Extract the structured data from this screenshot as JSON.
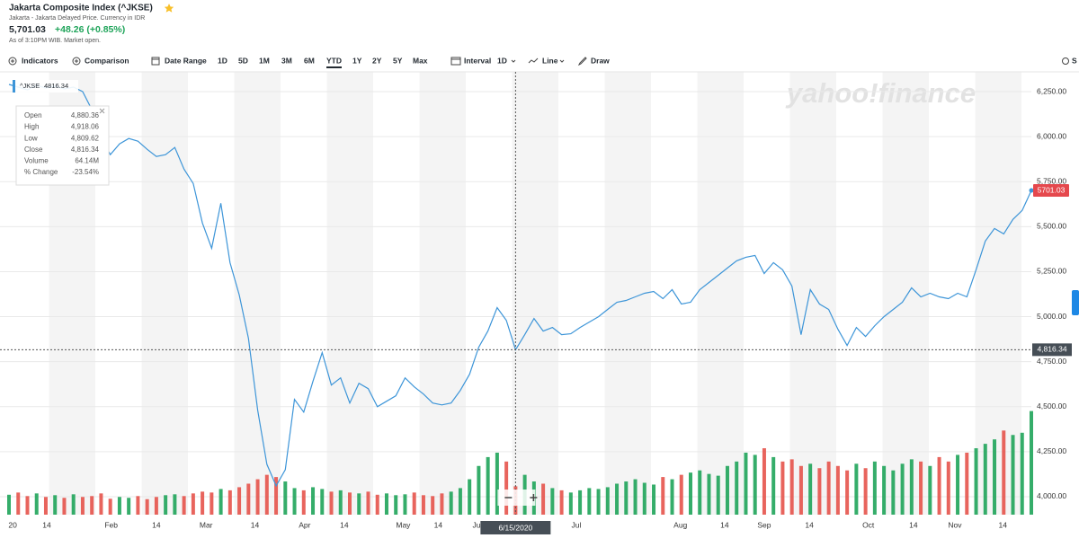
{
  "header": {
    "title": "Jakarta Composite Index (^JKSE)",
    "subtitle": "Jakarta - Jakarta Delayed Price. Currency in IDR",
    "price": "5,701.03",
    "change": "+48.26 (+0.85%)",
    "note": "As of 3:10PM WIB. Market open."
  },
  "toolbar": {
    "left": [
      "Indicators",
      "Comparison",
      "Date Range"
    ],
    "ranges": [
      "1D",
      "5D",
      "1M",
      "3M",
      "6M",
      "YTD",
      "1Y",
      "2Y",
      "5Y",
      "Max"
    ],
    "selected_range": 5,
    "interval": "Interval",
    "interval_value": "1D",
    "line": "Line",
    "draw": "Draw",
    "settings": "S"
  },
  "tooltip": {
    "rows": [
      [
        "Open",
        "4,880.36"
      ],
      [
        "High",
        "4,918.06"
      ],
      [
        "Low",
        "4,809.62"
      ],
      [
        "Close",
        "4,816.34"
      ],
      [
        "Volume",
        "64.14M"
      ],
      [
        "% Change",
        "-23.54%"
      ]
    ]
  },
  "chart_data": {
    "type": "line",
    "watermark": "yahoo!finance",
    "series": [
      {
        "name": "^JKSE",
        "color": "#3d95d8",
        "values": [
          6290,
          6275,
          6260,
          6285,
          6270,
          6280,
          6265,
          6275,
          6250,
          6150,
          6000,
          5900,
          5960,
          5990,
          5975,
          5930,
          5890,
          5900,
          5940,
          5820,
          5740,
          5520,
          5380,
          5630,
          5300,
          5120,
          4880,
          4480,
          4180,
          4060,
          4150,
          4540,
          4470,
          4640,
          4800,
          4620,
          4660,
          4520,
          4630,
          4600,
          4500,
          4530,
          4560,
          4660,
          4610,
          4570,
          4520,
          4510,
          4520,
          4590,
          4680,
          4830,
          4920,
          5050,
          4980,
          4816.34,
          4900,
          4990,
          4920,
          4940,
          4900,
          4905,
          4940,
          4970,
          5000,
          5040,
          5080,
          5090,
          5110,
          5130,
          5140,
          5100,
          5150,
          5070,
          5080,
          5150,
          5190,
          5230,
          5270,
          5310,
          5330,
          5340,
          5240,
          5300,
          5260,
          5170,
          4900,
          5150,
          5070,
          5040,
          4930,
          4840,
          4940,
          4890,
          4950,
          5000,
          5040,
          5080,
          5160,
          5110,
          5130,
          5110,
          5100,
          5130,
          5110,
          5260,
          5420,
          5490,
          5460,
          5540,
          5590,
          5701.03
        ]
      }
    ],
    "volume": {
      "up_color": "#1fa45a",
      "down_color": "#e5534b",
      "ylim": [
        0,
        1000
      ],
      "values": [
        45,
        50,
        42,
        48,
        40,
        44,
        38,
        46,
        40,
        42,
        48,
        36,
        40,
        38,
        42,
        35,
        40,
        44,
        46,
        42,
        48,
        52,
        50,
        58,
        55,
        62,
        70,
        80,
        90,
        85,
        75,
        60,
        55,
        62,
        58,
        52,
        55,
        50,
        48,
        52,
        45,
        48,
        44,
        46,
        50,
        44,
        42,
        48,
        52,
        60,
        80,
        110,
        130,
        140,
        120,
        64.14,
        90,
        75,
        70,
        60,
        55,
        50,
        55,
        60,
        58,
        62,
        70,
        75,
        80,
        72,
        68,
        85,
        80,
        90,
        95,
        100,
        92,
        88,
        110,
        120,
        140,
        135,
        150,
        130,
        120,
        125,
        110,
        115,
        105,
        120,
        110,
        100,
        115,
        105,
        120,
        110,
        100,
        115,
        125,
        120,
        110,
        130,
        120,
        135,
        140,
        150,
        160,
        170,
        190,
        180,
        185,
        234
      ]
    },
    "xlim": [
      0,
      111
    ],
    "xticks": [
      {
        "value": 0.4,
        "label": "20"
      },
      {
        "value": 4.1,
        "label": "14"
      },
      {
        "value": 11.1,
        "label": "Feb"
      },
      {
        "value": 16,
        "label": "14"
      },
      {
        "value": 21.4,
        "label": "Mar"
      },
      {
        "value": 26.7,
        "label": "14"
      },
      {
        "value": 32.1,
        "label": "Apr"
      },
      {
        "value": 36.4,
        "label": "14"
      },
      {
        "value": 42.8,
        "label": "May"
      },
      {
        "value": 46.6,
        "label": "14"
      },
      {
        "value": 51,
        "label": "Jun"
      },
      {
        "value": 61.6,
        "label": "Jul"
      },
      {
        "value": 72.9,
        "label": "Aug"
      },
      {
        "value": 77.7,
        "label": "14"
      },
      {
        "value": 82,
        "label": "Sep"
      },
      {
        "value": 86.9,
        "label": "14"
      },
      {
        "value": 93.3,
        "label": "Oct"
      },
      {
        "value": 98.2,
        "label": "14"
      },
      {
        "value": 102.7,
        "label": "Nov"
      },
      {
        "value": 107.9,
        "label": "14"
      }
    ],
    "ylim": [
      3900,
      6360
    ],
    "yticks": [
      {
        "value": 4000,
        "label": "4,000.00"
      },
      {
        "value": 4250,
        "label": "4,250.00"
      },
      {
        "value": 4500,
        "label": "4,500.00"
      },
      {
        "value": 4750,
        "label": "4,750.00"
      },
      {
        "value": 5000,
        "label": "5,000.00"
      },
      {
        "value": 5250,
        "label": "5,250.00"
      },
      {
        "value": 5500,
        "label": "5,500.00"
      },
      {
        "value": 5750,
        "label": "5,750.00"
      },
      {
        "value": 6000,
        "label": "6,000.00"
      },
      {
        "value": 6250,
        "label": "6,250.00"
      }
    ],
    "grid": true,
    "crosshair": {
      "x": 55,
      "x_label": "6/15/2020",
      "y": 4816.34,
      "y_label": "4,816.34"
    }
  }
}
